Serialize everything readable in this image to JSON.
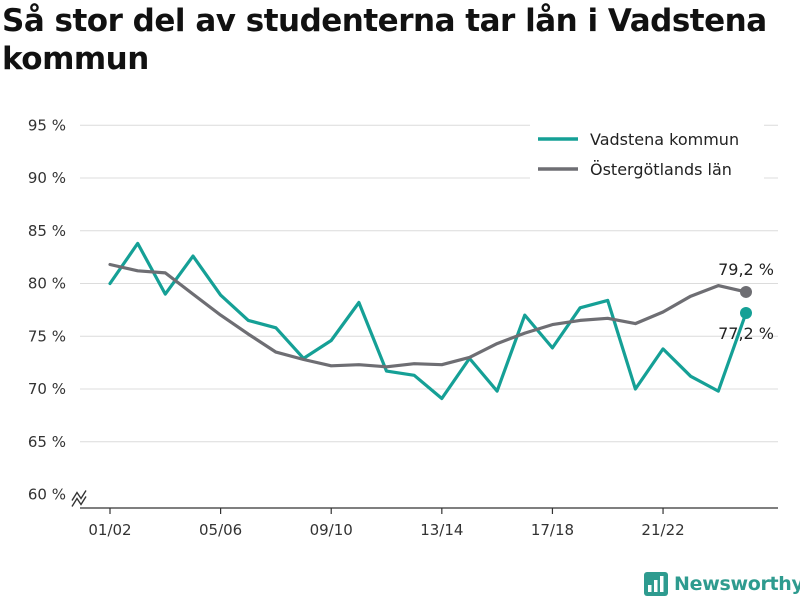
{
  "title": "Så stor del av studenterna tar lån i Vadstena kommun",
  "brand": {
    "name": "Newsworthy",
    "icon": "bar-chart-logo-icon"
  },
  "colors": {
    "vadstena": "#15a096",
    "ostergotland": "#6e6e73",
    "grid": "#dcdcdc",
    "brand": "#2e9b8f"
  },
  "chart_data": {
    "type": "line",
    "x": [
      "01/02",
      "02/03",
      "03/04",
      "04/05",
      "05/06",
      "06/07",
      "07/08",
      "08/09",
      "09/10",
      "10/11",
      "11/12",
      "12/13",
      "13/14",
      "14/15",
      "15/16",
      "16/17",
      "17/18",
      "18/19",
      "19/20",
      "20/21",
      "21/22",
      "22/23",
      "23/24",
      "24/25"
    ],
    "x_tick_labels": [
      "01/02",
      "05/06",
      "09/10",
      "13/14",
      "17/18",
      "21/22"
    ],
    "series": [
      {
        "name": "Vadstena kommun",
        "values": [
          80.0,
          83.8,
          79.0,
          82.6,
          78.9,
          76.5,
          75.8,
          72.9,
          74.6,
          78.2,
          71.7,
          71.3,
          69.1,
          72.9,
          69.8,
          77.0,
          73.9,
          77.7,
          78.4,
          70.0,
          73.8,
          71.2,
          69.8,
          77.2
        ]
      },
      {
        "name": "Östergötlands län",
        "values": [
          81.8,
          81.2,
          81.0,
          79.0,
          77.0,
          75.2,
          73.5,
          72.8,
          72.2,
          72.3,
          72.1,
          72.4,
          72.3,
          73.0,
          74.3,
          75.3,
          76.1,
          76.5,
          76.7,
          76.2,
          77.3,
          78.8,
          79.8,
          79.2
        ]
      }
    ],
    "y_ticks": [
      "60 %",
      "65 %",
      "70 %",
      "75 %",
      "80 %",
      "85 %",
      "90 %",
      "95 %"
    ],
    "ylim": [
      60,
      97
    ],
    "end_labels": {
      "vadstena": "77,2 %",
      "ostergotland": "79,2 %"
    },
    "legend_placement": "top-right",
    "grid": true,
    "y_axis_break": true
  }
}
